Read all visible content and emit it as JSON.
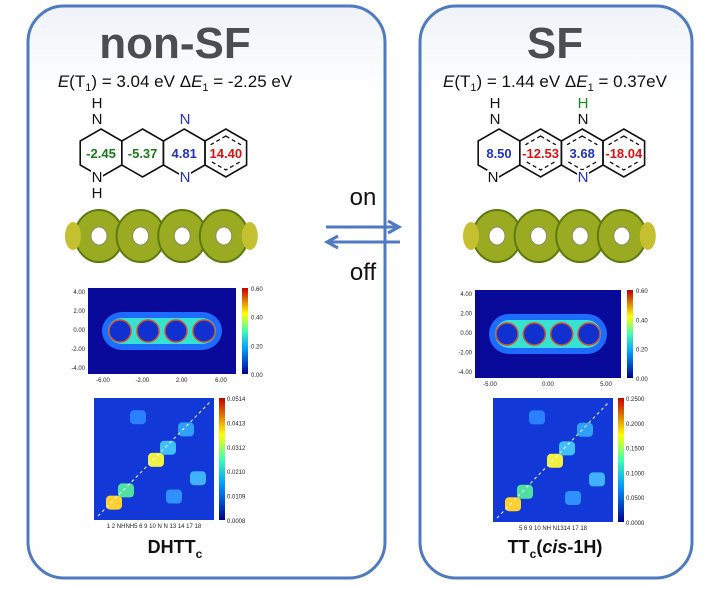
{
  "left": {
    "title": "non-SF",
    "energy": {
      "e": "E",
      "t": "(T",
      "t_sub": "1",
      "e_value": ") = 3.04 eV ",
      "delta": "Δ",
      "d": "E",
      "d_sub": "1",
      "d_value": " = -2.25 eV"
    },
    "ring_values": [
      "-2.45",
      "-5.37",
      "4.81",
      "14.40"
    ],
    "atoms": [
      "H",
      "N",
      "N",
      "H",
      "N",
      "N"
    ],
    "map_xticks": [
      "-6.00",
      "-2.00",
      "2.00",
      "6.00"
    ],
    "map_yticks": [
      "4.00",
      "2.00",
      "0.00",
      "-2.00",
      "-4.00"
    ],
    "map_cbar": [
      "0.60",
      "0.40",
      "0.20",
      "0.00"
    ],
    "matrix_cbar": [
      "0.0514",
      "0.0413",
      "0.0312",
      "0.0210",
      "0.0109",
      "0.0008"
    ],
    "matrix_xlabel": "1  2 NHNH5  6     9 10  N  N 13 14      17 18",
    "caption": {
      "main": "DHTT",
      "sub": "c"
    }
  },
  "right": {
    "title": "SF",
    "energy": {
      "e": "E",
      "t": "(T",
      "t_sub": "1",
      "e_value": ") = 1.44 eV ",
      "delta": "Δ",
      "d": "E",
      "d_sub": "1",
      "d_value": " = 0.37eV"
    },
    "ring_values": [
      "8.50",
      "-12.53",
      "3.68",
      "-18.04"
    ],
    "atoms": [
      "H",
      "N",
      "N",
      "H",
      "N",
      "N"
    ],
    "map_xticks": [
      "-5.00",
      "0.00",
      "5.00"
    ],
    "map_yticks": [
      "4.00",
      "2.00",
      "0.00",
      "-2.00",
      "-4.00"
    ],
    "map_cbar": [
      "0.60",
      "0.40",
      "0.20",
      "0.00"
    ],
    "matrix_cbar": [
      "0.2500",
      "0.2000",
      "0.1500",
      "0.1000",
      "0.0500",
      "0.0000"
    ],
    "matrix_xlabel": "5  6     9 10 NH N1314   17 18",
    "caption": {
      "main": "TT",
      "sub": "c",
      "paren_open": "(",
      "italic": "cis",
      "rest": "-1H)"
    }
  },
  "switch": {
    "on": "on",
    "off": "off"
  }
}
